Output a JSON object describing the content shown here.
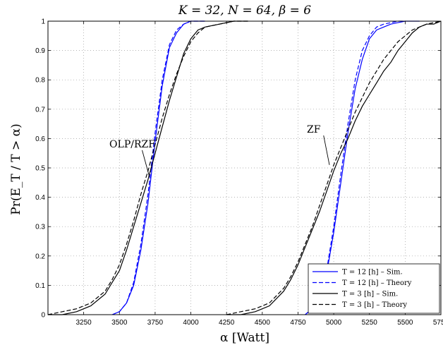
{
  "chart_data": {
    "type": "line",
    "title": "K = 32, N = 64, β = 6",
    "xlabel": "α [Watt]",
    "ylabel": "Pr(E_T / T > α)",
    "xlim": [
      3000,
      5750
    ],
    "ylim": [
      0,
      1
    ],
    "x_ticks": [
      3250,
      3500,
      3750,
      4000,
      4250,
      4500,
      4750,
      5000,
      5250,
      5500,
      5750
    ],
    "x_tick_labels": [
      "3250",
      "3500",
      "3750",
      "4000",
      "4250",
      "4500",
      "4750",
      "5000",
      "5250",
      "5500",
      "5750"
    ],
    "y_ticks": [
      0,
      0.1,
      0.2,
      0.3,
      0.4,
      0.5,
      0.6,
      0.7,
      0.8,
      0.9,
      1
    ],
    "y_tick_labels": [
      "0",
      "0.1",
      "0.2",
      "0.3",
      "0.4",
      "0.5",
      "0.6",
      "0.7",
      "0.8",
      "0.9",
      "1"
    ],
    "grid": true,
    "legend_position": "bottom-right",
    "annotations": [
      {
        "text": "OLP/RZF",
        "x": 3590,
        "y": 0.57,
        "arrow_to": [
          3710,
          0.47
        ]
      },
      {
        "text": "ZF",
        "x": 4860,
        "y": 0.62,
        "arrow_to": [
          4970,
          0.51
        ]
      }
    ],
    "series": [
      {
        "name": "T = 12 [h] – Sim.",
        "color": "#0000ff",
        "dash": "solid",
        "group": "OLP/RZF",
        "x": [
          3450,
          3500,
          3550,
          3600,
          3650,
          3700,
          3750,
          3800,
          3850,
          3900,
          3950,
          4000,
          4100
        ],
        "y": [
          0.0,
          0.01,
          0.04,
          0.1,
          0.22,
          0.38,
          0.59,
          0.78,
          0.91,
          0.96,
          0.99,
          1.0,
          1.0
        ]
      },
      {
        "name": "T = 12 [h] – Theory",
        "color": "#0000ff",
        "dash": "dashed",
        "group": "OLP/RZF",
        "x": [
          3450,
          3500,
          3550,
          3600,
          3650,
          3700,
          3750,
          3800,
          3850,
          3900,
          3950,
          4000,
          4100
        ],
        "y": [
          0.0,
          0.01,
          0.04,
          0.11,
          0.24,
          0.41,
          0.62,
          0.8,
          0.92,
          0.97,
          0.99,
          1.0,
          1.0
        ]
      },
      {
        "name": "T = 3 [h] – Sim.",
        "color": "#000000",
        "dash": "solid",
        "group": "OLP/RZF",
        "x": [
          3000,
          3100,
          3200,
          3300,
          3400,
          3450,
          3500,
          3550,
          3600,
          3650,
          3700,
          3750,
          3800,
          3850,
          3900,
          3950,
          4000,
          4050,
          4100,
          4200,
          4300,
          4400
        ],
        "y": [
          0.0,
          0.0,
          0.01,
          0.03,
          0.07,
          0.11,
          0.15,
          0.22,
          0.3,
          0.38,
          0.46,
          0.55,
          0.64,
          0.73,
          0.81,
          0.89,
          0.94,
          0.97,
          0.98,
          0.99,
          1.0,
          1.0
        ]
      },
      {
        "name": "T = 3 [h] – Theory",
        "color": "#000000",
        "dash": "dashed",
        "group": "OLP/RZF",
        "x": [
          3000,
          3100,
          3200,
          3300,
          3400,
          3450,
          3500,
          3550,
          3600,
          3650,
          3700,
          3750,
          3800,
          3850,
          3900,
          3950,
          4000,
          4050,
          4100,
          4200,
          4300,
          4400
        ],
        "y": [
          0.0,
          0.01,
          0.02,
          0.04,
          0.08,
          0.12,
          0.17,
          0.24,
          0.32,
          0.41,
          0.49,
          0.58,
          0.67,
          0.75,
          0.82,
          0.88,
          0.93,
          0.96,
          0.98,
          0.99,
          1.0,
          1.0
        ]
      },
      {
        "name": "T = 12 [h] – Sim.",
        "color": "#0000ff",
        "dash": "solid",
        "group": "ZF",
        "x": [
          4800,
          4850,
          4900,
          4950,
          5000,
          5050,
          5100,
          5150,
          5200,
          5250,
          5300,
          5350,
          5400,
          5450,
          5500,
          5550,
          5600
        ],
        "y": [
          0.0,
          0.02,
          0.05,
          0.14,
          0.28,
          0.45,
          0.62,
          0.77,
          0.87,
          0.94,
          0.97,
          0.98,
          0.99,
          0.995,
          1.0,
          1.0,
          1.0
        ]
      },
      {
        "name": "T = 12 [h] – Theory",
        "color": "#0000ff",
        "dash": "dashed",
        "group": "ZF",
        "x": [
          4800,
          4850,
          4900,
          4950,
          5000,
          5050,
          5100,
          5150,
          5200,
          5250,
          5300,
          5350,
          5400,
          5450,
          5500
        ],
        "y": [
          0.0,
          0.02,
          0.06,
          0.15,
          0.3,
          0.48,
          0.65,
          0.8,
          0.9,
          0.95,
          0.98,
          0.99,
          0.995,
          1.0,
          1.0
        ]
      },
      {
        "name": "T = 3 [h] – Sim.",
        "color": "#000000",
        "dash": "solid",
        "group": "ZF",
        "x": [
          4250,
          4350,
          4450,
          4550,
          4650,
          4700,
          4750,
          4800,
          4850,
          4900,
          4950,
          5000,
          5050,
          5100,
          5150,
          5200,
          5250,
          5300,
          5350,
          5400,
          5450,
          5500,
          5550,
          5600,
          5650,
          5700,
          5750
        ],
        "y": [
          0.0,
          0.0,
          0.01,
          0.03,
          0.08,
          0.12,
          0.17,
          0.23,
          0.29,
          0.35,
          0.42,
          0.49,
          0.55,
          0.6,
          0.66,
          0.71,
          0.75,
          0.79,
          0.83,
          0.86,
          0.9,
          0.93,
          0.96,
          0.98,
          0.99,
          0.99,
          1.0
        ]
      },
      {
        "name": "T = 3 [h] – Theory",
        "color": "#000000",
        "dash": "dashed",
        "group": "ZF",
        "x": [
          4250,
          4350,
          4450,
          4550,
          4650,
          4700,
          4750,
          4800,
          4850,
          4900,
          4950,
          5000,
          5050,
          5100,
          5150,
          5200,
          5250,
          5300,
          5350,
          5400,
          5450,
          5500,
          5550,
          5600,
          5650,
          5700,
          5750
        ],
        "y": [
          0.0,
          0.01,
          0.02,
          0.04,
          0.09,
          0.13,
          0.18,
          0.24,
          0.3,
          0.37,
          0.44,
          0.51,
          0.57,
          0.63,
          0.69,
          0.74,
          0.79,
          0.83,
          0.87,
          0.9,
          0.93,
          0.95,
          0.97,
          0.98,
          0.99,
          0.995,
          1.0
        ]
      }
    ],
    "legend": [
      {
        "label": "T = 12 [h] – Sim.",
        "color": "#0000ff",
        "dash": "solid"
      },
      {
        "label": "T = 12 [h] – Theory",
        "color": "#0000ff",
        "dash": "dashed"
      },
      {
        "label": "T = 3 [h] – Sim.",
        "color": "#000000",
        "dash": "solid"
      },
      {
        "label": "T = 3 [h] – Theory",
        "color": "#000000",
        "dash": "dashed"
      }
    ]
  }
}
